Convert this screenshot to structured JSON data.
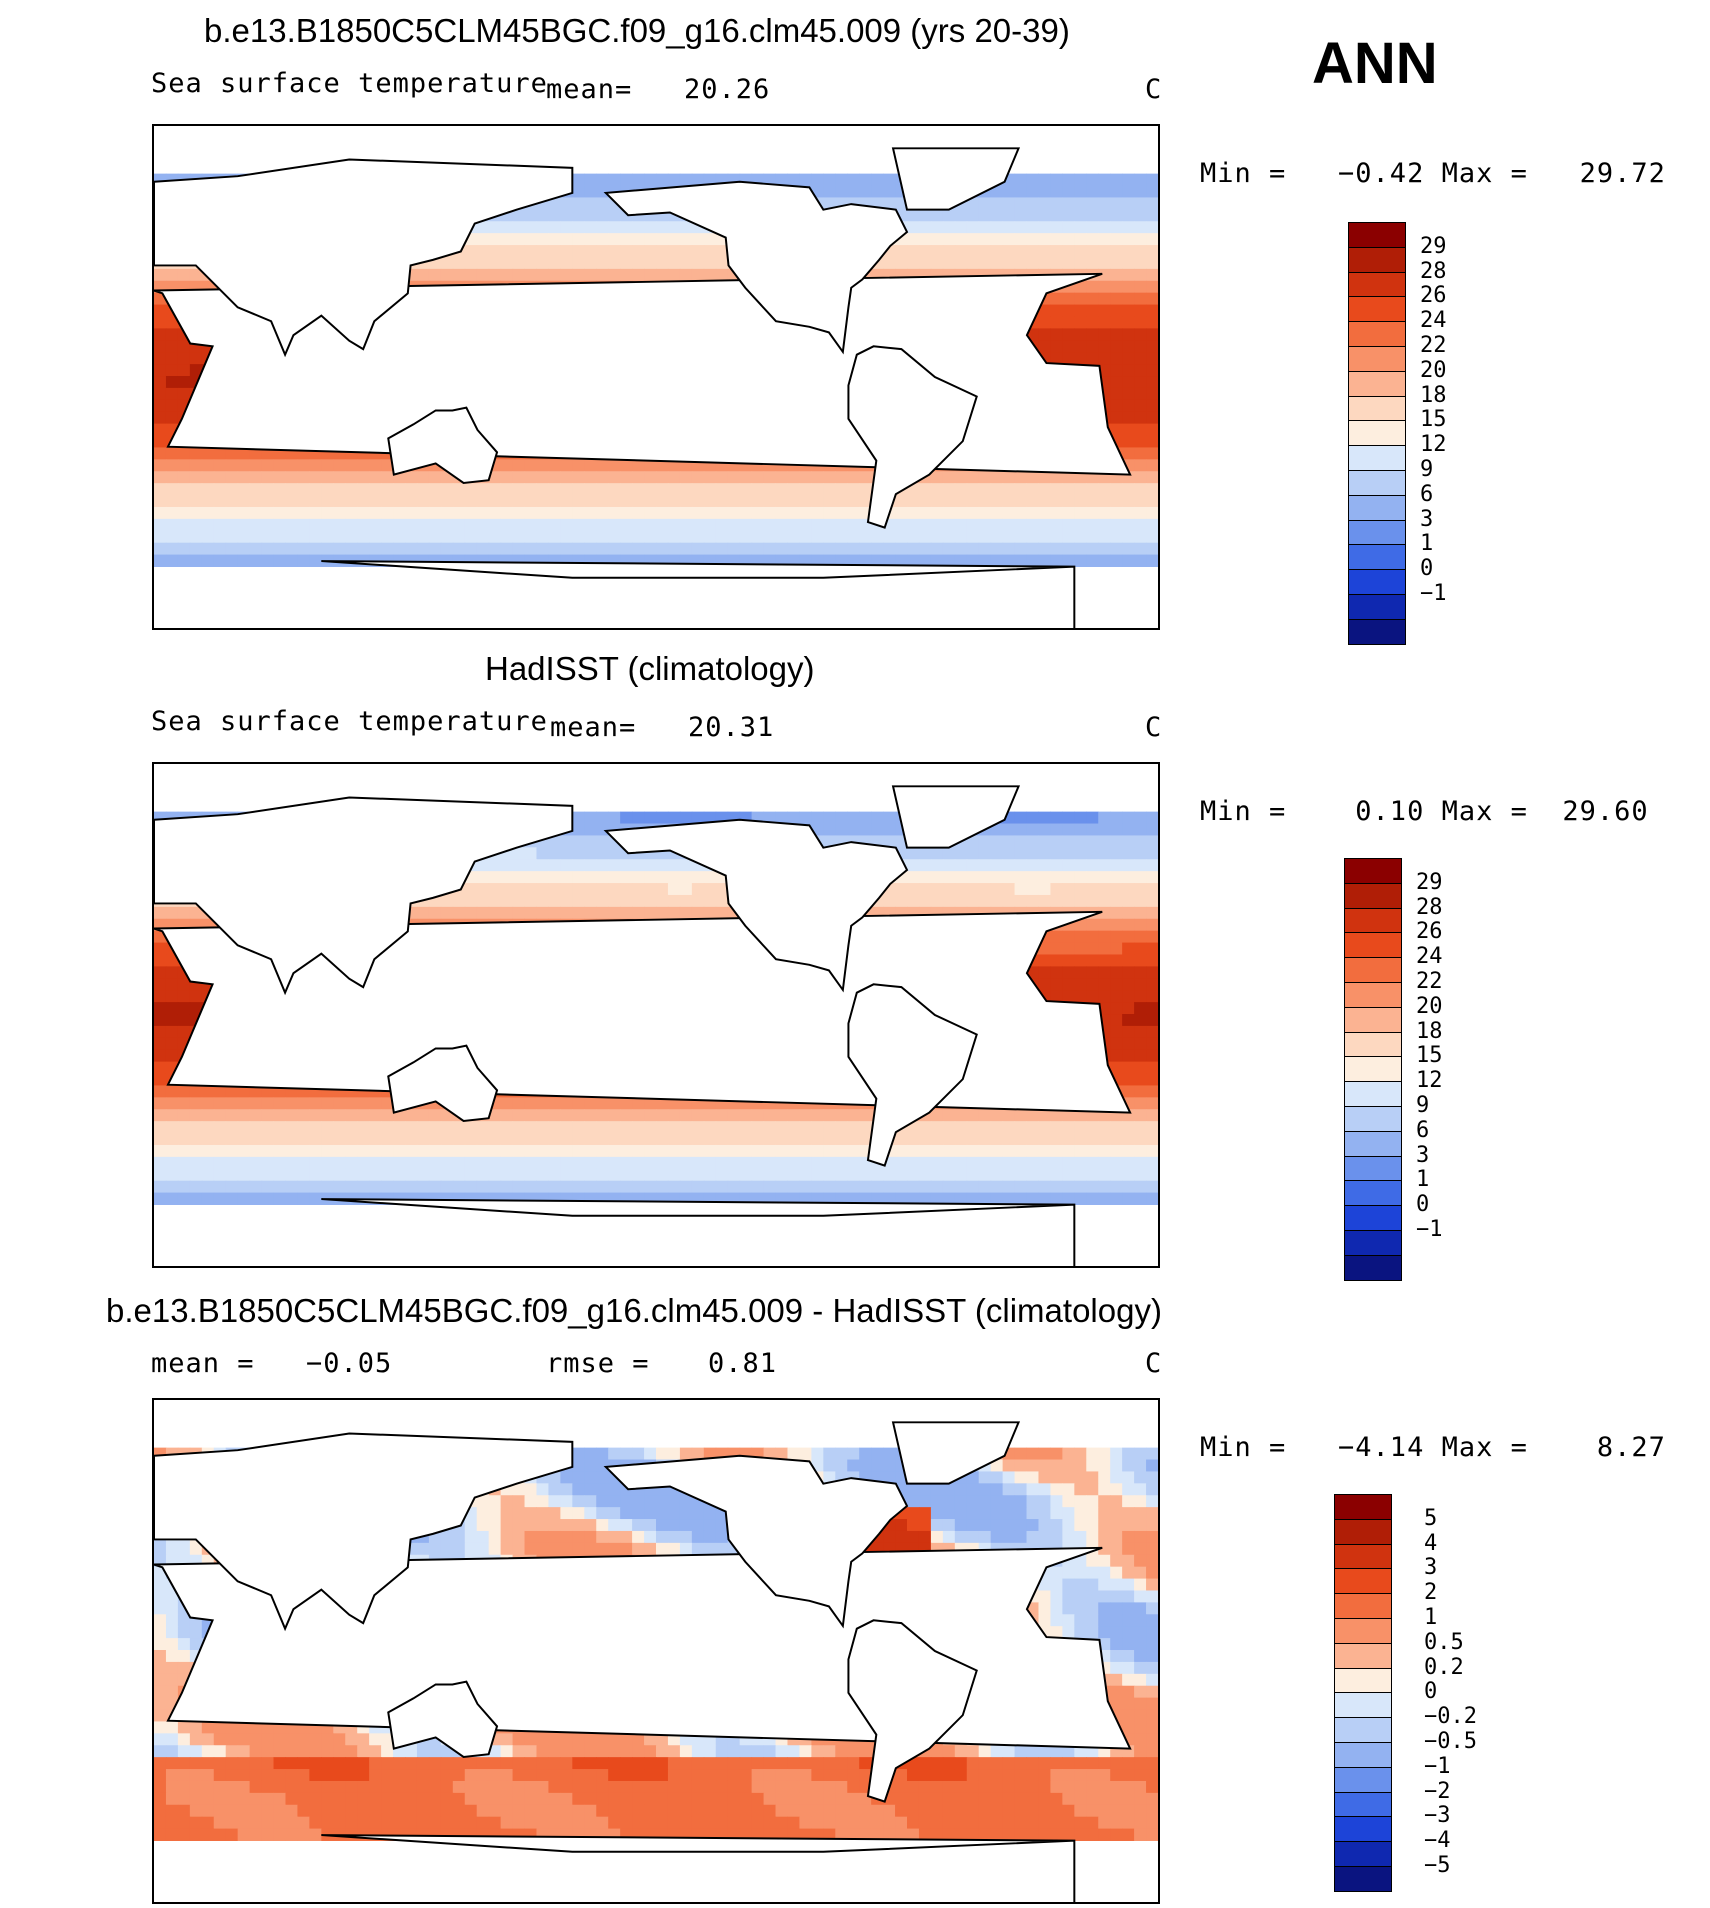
{
  "season": "ANN",
  "panels": [
    {
      "title": "b.e13.B1850C5CLM45BGC.f09_g16.clm45.009 (yrs 20-39)",
      "variable": "Sea surface temperature",
      "stat_label": "mean=",
      "stat_value": "20.26",
      "units": "C",
      "minmax": "Min =   −0.42 Max =   29.72",
      "field": "model"
    },
    {
      "title": "HadISST (climatology)",
      "variable": "Sea surface temperature",
      "stat_label": "mean=",
      "stat_value": "20.31",
      "units": "C",
      "minmax": "Min =    0.10 Max =  29.60",
      "field": "obs"
    },
    {
      "title": "b.e13.B1850C5CLM45BGC.f09_g16.clm45.009 - HadISST (climatology)",
      "mean_label": "mean =",
      "mean_value": "−0.05",
      "rmse_label": "rmse =",
      "rmse_value": "0.81",
      "units": "C",
      "minmax": "Min =   −4.14 Max =    8.27",
      "field": "diff"
    }
  ],
  "colorbar_abs": {
    "labels": [
      "29",
      "28",
      "26",
      "24",
      "22",
      "20",
      "18",
      "15",
      "12",
      "9",
      "6",
      "3",
      "1",
      "0",
      "−1"
    ],
    "colors": [
      "#8b0000",
      "#b01e06",
      "#d0330f",
      "#e84a1c",
      "#f26d3e",
      "#f89168",
      "#fbb392",
      "#fdd8c0",
      "#fdeedf",
      "#d8e7fa",
      "#b8cff6",
      "#93b2f1",
      "#6a91ec",
      "#3f6be6",
      "#1d44d8",
      "#0f28b0",
      "#0a1480"
    ]
  },
  "colorbar_diff": {
    "labels": [
      "5",
      "4",
      "3",
      "2",
      "1",
      "0.5",
      "0.2",
      "0",
      "−0.2",
      "−0.5",
      "−1",
      "−2",
      "−3",
      "−4",
      "−5"
    ],
    "colors": [
      "#8b0000",
      "#b01e06",
      "#d0330f",
      "#e84a1c",
      "#f26d3e",
      "#f89168",
      "#fbb392",
      "#fdeedf",
      "#d8e7fa",
      "#b8cff6",
      "#93b2f1",
      "#6a91ec",
      "#3f6be6",
      "#1d44d8",
      "#0f28b0",
      "#0a1480"
    ]
  }
}
